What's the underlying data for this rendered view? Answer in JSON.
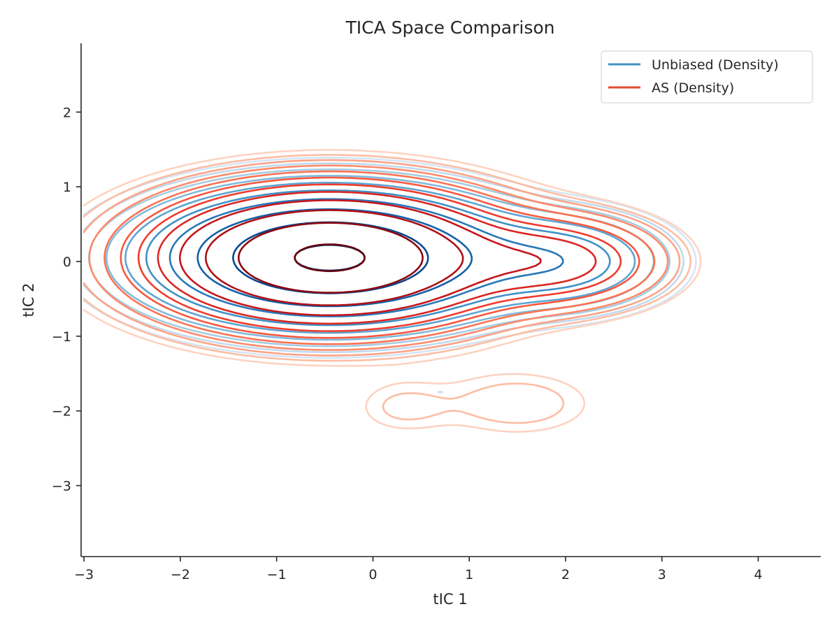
{
  "chart_data": {
    "type": "contour",
    "title": "TICA Space Comparison",
    "xlabel": "tIC 1",
    "ylabel": "tIC 2",
    "xlim": [
      -3.03,
      4.65
    ],
    "ylim": [
      -3.95,
      2.92
    ],
    "xticks": [
      -3,
      -2,
      -1,
      0,
      1,
      2,
      3,
      4
    ],
    "yticks": [
      -3,
      -2,
      -1,
      0,
      1,
      2
    ],
    "xtick_labels": [
      "−3",
      "−2",
      "−1",
      "0",
      "1",
      "2",
      "3",
      "4"
    ],
    "ytick_labels": [
      "−3",
      "−2",
      "−1",
      "0",
      "1",
      "2"
    ],
    "grid": false,
    "legend": {
      "placement": "upper right",
      "entries": [
        "Unbiased (Density)",
        "AS (Density)"
      ]
    },
    "series": [
      {
        "name": "Unbiased (Density)",
        "colormap": "Blues",
        "legend_color": "#4292c6",
        "density_components": [
          {
            "mean": [
              -0.45,
              0.05
            ],
            "sd": [
              0.95,
              0.45
            ],
            "weight": 1.0
          },
          {
            "mean": [
              1.95,
              0.0
            ],
            "sd": [
              0.6,
              0.35
            ],
            "weight": 0.18
          },
          {
            "mean": [
              0.7,
              -1.75
            ],
            "sd": [
              0.18,
              0.12
            ],
            "weight": 0.012
          }
        ],
        "levels": 10
      },
      {
        "name": "AS (Density)",
        "colormap": "Reds",
        "legend_color": "#e34a33",
        "density_components": [
          {
            "mean": [
              -0.45,
              0.05
            ],
            "sd": [
              0.95,
              0.47
            ],
            "weight": 1.0
          },
          {
            "mean": [
              1.9,
              0.0
            ],
            "sd": [
              0.6,
              0.33
            ],
            "weight": 0.2
          },
          {
            "mean": [
              1.5,
              -1.9
            ],
            "sd": [
              0.55,
              0.3
            ],
            "weight": 0.02
          },
          {
            "mean": [
              0.3,
              -1.95
            ],
            "sd": [
              0.35,
              0.25
            ],
            "weight": 0.015
          }
        ],
        "levels": 12
      }
    ]
  }
}
